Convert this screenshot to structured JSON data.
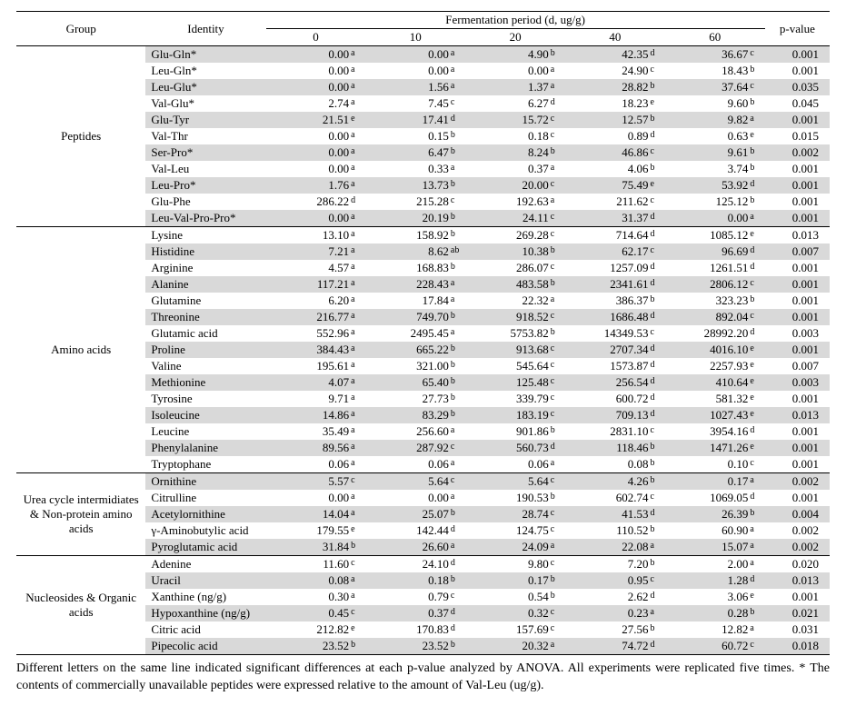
{
  "header": {
    "group": "Group",
    "identity": "Identity",
    "ferm": "Fermentation period (d, ug/g)",
    "periods": [
      "0",
      "10",
      "20",
      "40",
      "60"
    ],
    "pvalue": "p-value"
  },
  "footnote": "Different letters on the same line indicated significant differences at each p-value analyzed by ANOVA. All experiments were replicated five times. * The contents of commercially unavailable peptides were expressed relative to the amount of Val-Leu (ug/g).",
  "shaded_color": "#d9d9d9",
  "groups": [
    {
      "name": "Peptides",
      "rows": [
        {
          "id": "Glu-Gln*",
          "shaded": true,
          "v": [
            [
              "0.00",
              "a"
            ],
            [
              "0.00",
              "a"
            ],
            [
              "4.90",
              "b"
            ],
            [
              "42.35",
              "d"
            ],
            [
              "36.67",
              "c"
            ]
          ],
          "p": "0.001"
        },
        {
          "id": "Leu-Gln*",
          "v": [
            [
              "0.00",
              "a"
            ],
            [
              "0.00",
              "a"
            ],
            [
              "0.00",
              "a"
            ],
            [
              "24.90",
              "c"
            ],
            [
              "18.43",
              "b"
            ]
          ],
          "p": "0.001"
        },
        {
          "id": "Leu-Glu*",
          "shaded": true,
          "v": [
            [
              "0.00",
              "a"
            ],
            [
              "1.56",
              "a"
            ],
            [
              "1.37",
              "a"
            ],
            [
              "28.82",
              "b"
            ],
            [
              "37.64",
              "c"
            ]
          ],
          "p": "0.035"
        },
        {
          "id": "Val-Glu*",
          "v": [
            [
              "2.74",
              "a"
            ],
            [
              "7.45",
              "c"
            ],
            [
              "6.27",
              "d"
            ],
            [
              "18.23",
              "e"
            ],
            [
              "9.60",
              "b"
            ]
          ],
          "p": "0.045"
        },
        {
          "id": "Glu-Tyr",
          "shaded": true,
          "v": [
            [
              "21.51",
              "e"
            ],
            [
              "17.41",
              "d"
            ],
            [
              "15.72",
              "c"
            ],
            [
              "12.57",
              "b"
            ],
            [
              "9.82",
              "a"
            ]
          ],
          "p": "0.001"
        },
        {
          "id": "Val-Thr",
          "v": [
            [
              "0.00",
              "a"
            ],
            [
              "0.15",
              "b"
            ],
            [
              "0.18",
              "c"
            ],
            [
              "0.89",
              "d"
            ],
            [
              "0.63",
              "e"
            ]
          ],
          "p": "0.015"
        },
        {
          "id": "Ser-Pro*",
          "shaded": true,
          "v": [
            [
              "0.00",
              "a"
            ],
            [
              "6.47",
              "b"
            ],
            [
              "8.24",
              "b"
            ],
            [
              "46.86",
              "c"
            ],
            [
              "9.61",
              "b"
            ]
          ],
          "p": "0.002"
        },
        {
          "id": "Val-Leu",
          "v": [
            [
              "0.00",
              "a"
            ],
            [
              "0.33",
              "a"
            ],
            [
              "0.37",
              "a"
            ],
            [
              "4.06",
              "b"
            ],
            [
              "3.74",
              "b"
            ]
          ],
          "p": "0.001"
        },
        {
          "id": "Leu-Pro*",
          "shaded": true,
          "v": [
            [
              "1.76",
              "a"
            ],
            [
              "13.73",
              "b"
            ],
            [
              "20.00",
              "c"
            ],
            [
              "75.49",
              "e"
            ],
            [
              "53.92",
              "d"
            ]
          ],
          "p": "0.001"
        },
        {
          "id": "Glu-Phe",
          "v": [
            [
              "286.22",
              "d"
            ],
            [
              "215.28",
              "c"
            ],
            [
              "192.63",
              "a"
            ],
            [
              "211.62",
              "c"
            ],
            [
              "125.12",
              "b"
            ]
          ],
          "p": "0.001"
        },
        {
          "id": "Leu-Val-Pro-Pro*",
          "shaded": true,
          "v": [
            [
              "0.00",
              "a"
            ],
            [
              "20.19",
              "b"
            ],
            [
              "24.11",
              "c"
            ],
            [
              "31.37",
              "d"
            ],
            [
              "0.00",
              "a"
            ]
          ],
          "p": "0.001"
        }
      ]
    },
    {
      "name": "Amino acids",
      "rows": [
        {
          "id": "Lysine",
          "v": [
            [
              "13.10",
              "a"
            ],
            [
              "158.92",
              "b"
            ],
            [
              "269.28",
              "c"
            ],
            [
              "714.64",
              "d"
            ],
            [
              "1085.12",
              "e"
            ]
          ],
          "p": "0.013"
        },
        {
          "id": "Histidine",
          "shaded": true,
          "v": [
            [
              "7.21",
              "a"
            ],
            [
              "8.62",
              "ab"
            ],
            [
              "10.38",
              "b"
            ],
            [
              "62.17",
              "c"
            ],
            [
              "96.69",
              "d"
            ]
          ],
          "p": "0.007"
        },
        {
          "id": "Arginine",
          "v": [
            [
              "4.57",
              "a"
            ],
            [
              "168.83",
              "b"
            ],
            [
              "286.07",
              "c"
            ],
            [
              "1257.09",
              "d"
            ],
            [
              "1261.51",
              "d"
            ]
          ],
          "p": "0.001"
        },
        {
          "id": "Alanine",
          "shaded": true,
          "v": [
            [
              "117.21",
              "a"
            ],
            [
              "228.43",
              "a"
            ],
            [
              "483.58",
              "b"
            ],
            [
              "2341.61",
              "d"
            ],
            [
              "2806.12",
              "c"
            ]
          ],
          "p": "0.001"
        },
        {
          "id": "Glutamine",
          "v": [
            [
              "6.20",
              "a"
            ],
            [
              "17.84",
              "a"
            ],
            [
              "22.32",
              "a"
            ],
            [
              "386.37",
              "b"
            ],
            [
              "323.23",
              "b"
            ]
          ],
          "p": "0.001"
        },
        {
          "id": "Threonine",
          "shaded": true,
          "v": [
            [
              "216.77",
              "a"
            ],
            [
              "749.70",
              "b"
            ],
            [
              "918.52",
              "c"
            ],
            [
              "1686.48",
              "d"
            ],
            [
              "892.04",
              "c"
            ]
          ],
          "p": "0.001"
        },
        {
          "id": "Glutamic acid",
          "v": [
            [
              "552.96",
              "a"
            ],
            [
              "2495.45",
              "a"
            ],
            [
              "5753.82",
              "b"
            ],
            [
              "14349.53",
              "c"
            ],
            [
              "28992.20",
              "d"
            ]
          ],
          "p": "0.003"
        },
        {
          "id": "Proline",
          "shaded": true,
          "v": [
            [
              "384.43",
              "a"
            ],
            [
              "665.22",
              "b"
            ],
            [
              "913.68",
              "c"
            ],
            [
              "2707.34",
              "d"
            ],
            [
              "4016.10",
              "e"
            ]
          ],
          "p": "0.001"
        },
        {
          "id": "Valine",
          "v": [
            [
              "195.61",
              "a"
            ],
            [
              "321.00",
              "b"
            ],
            [
              "545.64",
              "c"
            ],
            [
              "1573.87",
              "d"
            ],
            [
              "2257.93",
              "e"
            ]
          ],
          "p": "0.007"
        },
        {
          "id": "Methionine",
          "shaded": true,
          "v": [
            [
              "4.07",
              "a"
            ],
            [
              "65.40",
              "b"
            ],
            [
              "125.48",
              "c"
            ],
            [
              "256.54",
              "d"
            ],
            [
              "410.64",
              "e"
            ]
          ],
          "p": "0.003"
        },
        {
          "id": "Tyrosine",
          "v": [
            [
              "9.71",
              "a"
            ],
            [
              "27.73",
              "b"
            ],
            [
              "339.79",
              "c"
            ],
            [
              "600.72",
              "d"
            ],
            [
              "581.32",
              "e"
            ]
          ],
          "p": "0.001"
        },
        {
          "id": "Isoleucine",
          "shaded": true,
          "v": [
            [
              "14.86",
              "a"
            ],
            [
              "83.29",
              "b"
            ],
            [
              "183.19",
              "c"
            ],
            [
              "709.13",
              "d"
            ],
            [
              "1027.43",
              "e"
            ]
          ],
          "p": "0.013"
        },
        {
          "id": "Leucine",
          "v": [
            [
              "35.49",
              "a"
            ],
            [
              "256.60",
              "a"
            ],
            [
              "901.86",
              "b"
            ],
            [
              "2831.10",
              "c"
            ],
            [
              "3954.16",
              "d"
            ]
          ],
          "p": "0.001"
        },
        {
          "id": "Phenylalanine",
          "shaded": true,
          "v": [
            [
              "89.56",
              "a"
            ],
            [
              "287.92",
              "c"
            ],
            [
              "560.73",
              "d"
            ],
            [
              "118.46",
              "b"
            ],
            [
              "1471.26",
              "e"
            ]
          ],
          "p": "0.001"
        },
        {
          "id": "Tryptophane",
          "v": [
            [
              "0.06",
              "a"
            ],
            [
              "0.06",
              "a"
            ],
            [
              "0.06",
              "a"
            ],
            [
              "0.08",
              "b"
            ],
            [
              "0.10",
              "c"
            ]
          ],
          "p": "0.001"
        }
      ]
    },
    {
      "name": "Urea cycle intermidiates & Non-protein amino acids",
      "rows": [
        {
          "id": "Ornithine",
          "shaded": true,
          "v": [
            [
              "5.57",
              "c"
            ],
            [
              "5.64",
              "c"
            ],
            [
              "5.64",
              "c"
            ],
            [
              "4.26",
              "b"
            ],
            [
              "0.17",
              "a"
            ]
          ],
          "p": "0.002"
        },
        {
          "id": "Citrulline",
          "v": [
            [
              "0.00",
              "a"
            ],
            [
              "0.00",
              "a"
            ],
            [
              "190.53",
              "b"
            ],
            [
              "602.74",
              "c"
            ],
            [
              "1069.05",
              "d"
            ]
          ],
          "p": "0.001"
        },
        {
          "id": "Acetylornithine",
          "shaded": true,
          "v": [
            [
              "14.04",
              "a"
            ],
            [
              "25.07",
              "b"
            ],
            [
              "28.74",
              "c"
            ],
            [
              "41.53",
              "d"
            ],
            [
              "26.39",
              "b"
            ]
          ],
          "p": "0.004"
        },
        {
          "id": "γ-Aminobutylic acid",
          "v": [
            [
              "179.55",
              "e"
            ],
            [
              "142.44",
              "d"
            ],
            [
              "124.75",
              "c"
            ],
            [
              "110.52",
              "b"
            ],
            [
              "60.90",
              "a"
            ]
          ],
          "p": "0.002"
        },
        {
          "id": "Pyroglutamic acid",
          "shaded": true,
          "v": [
            [
              "31.84",
              "b"
            ],
            [
              "26.60",
              "a"
            ],
            [
              "24.09",
              "a"
            ],
            [
              "22.08",
              "a"
            ],
            [
              "15.07",
              "a"
            ]
          ],
          "p": "0.002"
        }
      ]
    },
    {
      "name": "Nucleosides & Organic acids",
      "rows": [
        {
          "id": "Adenine",
          "v": [
            [
              "11.60",
              "c"
            ],
            [
              "24.10",
              "d"
            ],
            [
              "9.80",
              "c"
            ],
            [
              "7.20",
              "b"
            ],
            [
              "2.00",
              "a"
            ]
          ],
          "p": "0.020"
        },
        {
          "id": "Uracil",
          "shaded": true,
          "v": [
            [
              "0.08",
              "a"
            ],
            [
              "0.18",
              "b"
            ],
            [
              "0.17",
              "b"
            ],
            [
              "0.95",
              "c"
            ],
            [
              "1.28",
              "d"
            ]
          ],
          "p": "0.013"
        },
        {
          "id": "Xanthine (ng/g)",
          "v": [
            [
              "0.30",
              "a"
            ],
            [
              "0.79",
              "c"
            ],
            [
              "0.54",
              "b"
            ],
            [
              "2.62",
              "d"
            ],
            [
              "3.06",
              "e"
            ]
          ],
          "p": "0.001"
        },
        {
          "id": "Hypoxanthine (ng/g)",
          "shaded": true,
          "v": [
            [
              "0.45",
              "c"
            ],
            [
              "0.37",
              "d"
            ],
            [
              "0.32",
              "c"
            ],
            [
              "0.23",
              "a"
            ],
            [
              "0.28",
              "b"
            ]
          ],
          "p": "0.021"
        },
        {
          "id": "Citric acid",
          "v": [
            [
              "212.82",
              "e"
            ],
            [
              "170.83",
              "d"
            ],
            [
              "157.69",
              "c"
            ],
            [
              "27.56",
              "b"
            ],
            [
              "12.82",
              "a"
            ]
          ],
          "p": "0.031"
        },
        {
          "id": "Pipecolic acid",
          "shaded": true,
          "v": [
            [
              "23.52",
              "b"
            ],
            [
              "23.52",
              "b"
            ],
            [
              "20.32",
              "a"
            ],
            [
              "74.72",
              "d"
            ],
            [
              "60.72",
              "c"
            ]
          ],
          "p": "0.018"
        }
      ]
    }
  ]
}
